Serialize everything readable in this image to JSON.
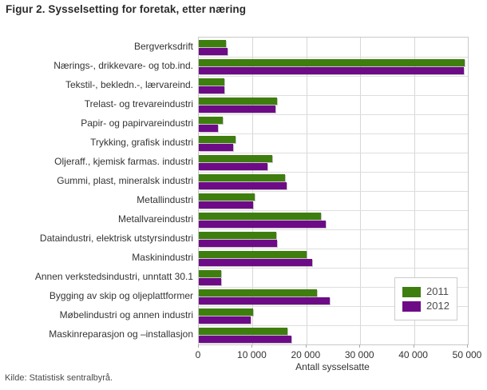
{
  "title": "Figur 2. Sysselsetting for foretak, etter næring",
  "source": "Kilde: Statistisk sentralbyrå.",
  "chart_data": {
    "type": "bar",
    "orientation": "horizontal",
    "title": "Figur 2. Sysselsetting for foretak, etter næring",
    "xlabel": "Antall sysselsatte",
    "ylabel": "",
    "xlim": [
      0,
      50000
    ],
    "x_ticks": [
      0,
      10000,
      20000,
      30000,
      40000,
      50000
    ],
    "x_tick_labels": [
      "0",
      "10 000",
      "20 000",
      "30 000",
      "40 000",
      "50 000"
    ],
    "grid": true,
    "legend_position": "inside-right",
    "categories": [
      "Bergverksdrift",
      "Nærings-, drikkevare- og tob.ind.",
      "Tekstil-, bekledn.-, lærvareind.",
      "Trelast- og trevareindustri",
      "Papir- og papirvareindustri",
      "Trykking, grafisk industri",
      "Oljeraff., kjemisk farmas. industri",
      "Gummi, plast, mineralsk industri",
      "Metallindustri",
      "Metallvareindustri",
      "Dataindustri, elektrisk utstyrsindustri",
      "Maskinindustri",
      "Annen verkstedsindustri, unntatt 30.1",
      "Bygging av skip og oljeplattformer",
      "Møbelindustri og annen industri",
      "Maskinreparasjon og –installasjon"
    ],
    "series": [
      {
        "name": "2011",
        "color": "#3e7e0e",
        "values": [
          5100,
          49400,
          4800,
          14500,
          4500,
          6800,
          13700,
          16000,
          10400,
          22700,
          14400,
          20100,
          4200,
          22000,
          10100,
          16500
        ]
      },
      {
        "name": "2012",
        "color": "#6d0b87",
        "values": [
          5300,
          49300,
          4800,
          14200,
          3600,
          6400,
          12800,
          16300,
          10100,
          23600,
          14500,
          21100,
          4100,
          24400,
          9700,
          17200
        ]
      }
    ]
  }
}
